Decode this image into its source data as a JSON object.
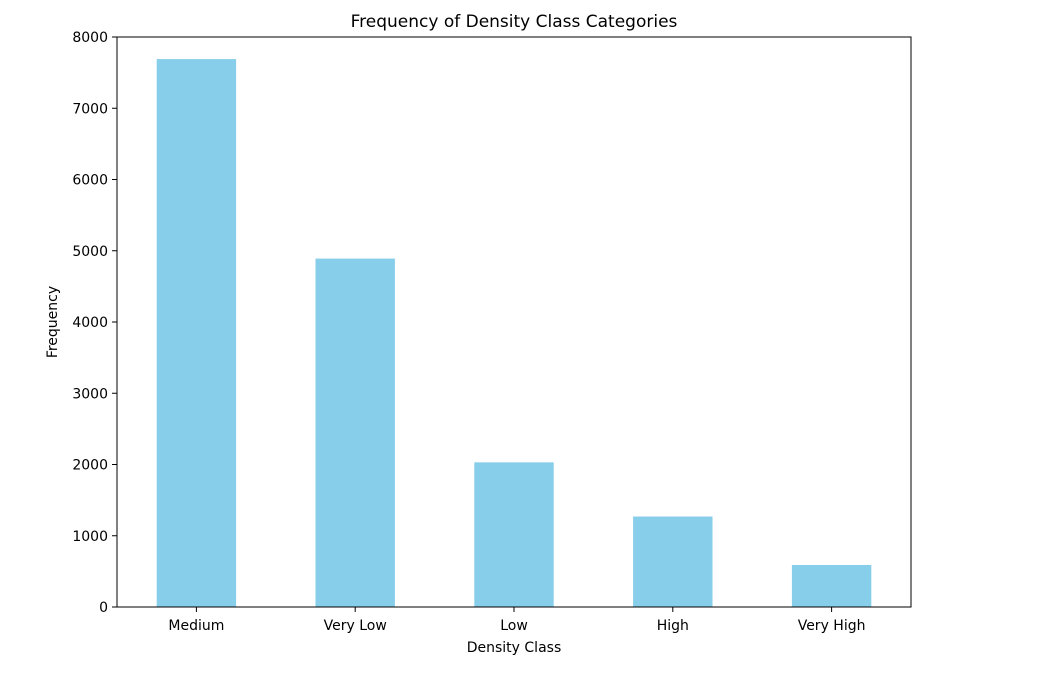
{
  "chart_data": {
    "type": "bar",
    "title": "Frequency of Density Class Categories",
    "xlabel": "Density Class",
    "ylabel": "Frequency",
    "categories": [
      "Medium",
      "Very Low",
      "Low",
      "High",
      "Very High"
    ],
    "values": [
      7690,
      4890,
      2030,
      1270,
      590
    ],
    "ylim": [
      0,
      8000
    ],
    "yticks": [
      0,
      1000,
      2000,
      3000,
      4000,
      5000,
      6000,
      7000,
      8000
    ],
    "ytick_labels": [
      "0",
      "1000",
      "2000",
      "3000",
      "4000",
      "5000",
      "6000",
      "7000",
      "8000"
    ],
    "bar_color": "#87CEEB",
    "grid": false,
    "legend": false
  }
}
